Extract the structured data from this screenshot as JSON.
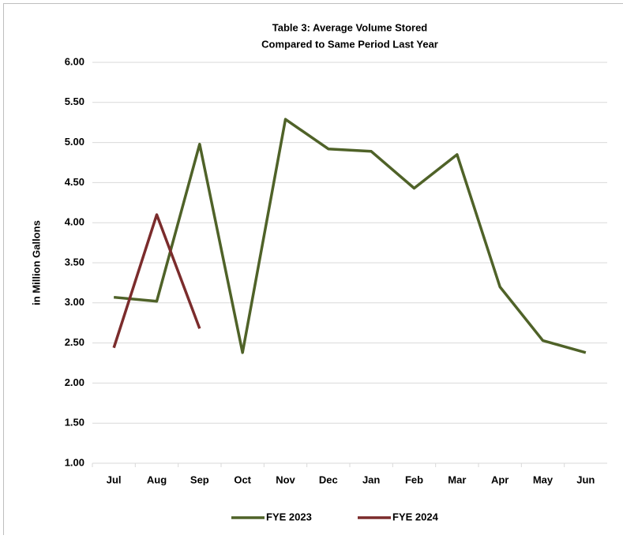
{
  "chart_data": {
    "type": "line",
    "title": [
      "Table 3: Average  Volume Stored",
      "Compared to Same Period Last Year"
    ],
    "y_label": "in Million Gallons",
    "categories": [
      "Jul",
      "Aug",
      "Sep",
      "Oct",
      "Nov",
      "Dec",
      "Jan",
      "Feb",
      "Mar",
      "Apr",
      "May",
      "Jun"
    ],
    "series": [
      {
        "name": "FYE 2023",
        "color": "#4f6228",
        "values": [
          3.07,
          3.02,
          4.98,
          2.38,
          5.29,
          4.92,
          4.89,
          4.43,
          4.85,
          3.2,
          2.53,
          2.38
        ]
      },
      {
        "name": "FYE 2024",
        "color": "#7b2c2c",
        "values": [
          2.44,
          4.1,
          2.68,
          null,
          null,
          null,
          null,
          null,
          null,
          null,
          null,
          null
        ]
      }
    ],
    "ylim": [
      1,
      6
    ],
    "yticks": [
      {
        "value": 1,
        "label": "1.00"
      },
      {
        "value": 1.5,
        "label": "1.50"
      },
      {
        "value": 2,
        "label": "2.00"
      },
      {
        "value": 2.5,
        "label": "2.50"
      },
      {
        "value": 3,
        "label": "3.00"
      },
      {
        "value": 3.5,
        "label": "3.50"
      },
      {
        "value": 4,
        "label": "4.00"
      },
      {
        "value": 4.5,
        "label": "4.50"
      },
      {
        "value": 5,
        "label": "5.00"
      },
      {
        "value": 5.5,
        "label": "5.50"
      },
      {
        "value": 6,
        "label": "6.00"
      }
    ],
    "grid": true,
    "legend": "bottom"
  }
}
